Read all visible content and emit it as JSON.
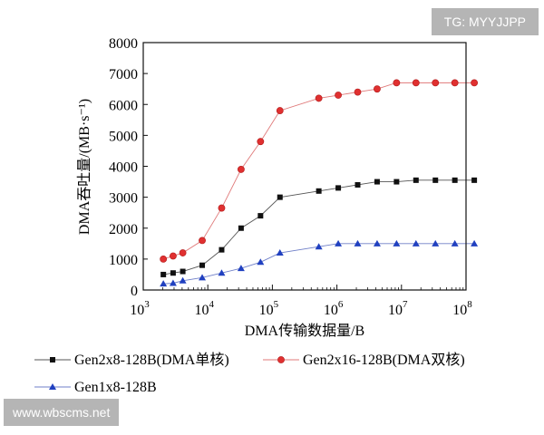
{
  "watermarks": {
    "top_right": "TG: MYYJJPP",
    "bottom_left": "www.wbscms.net"
  },
  "chart_data": {
    "type": "line",
    "xscale": "log",
    "title": "",
    "xlabel": "DMA传输数据量/B",
    "ylabel": "DMA吞吐量/(MB·s⁻¹)",
    "xlim": [
      1000,
      100000000
    ],
    "ylim": [
      0,
      8000
    ],
    "y_ticks": [
      0,
      1000,
      2000,
      3000,
      4000,
      5000,
      6000,
      7000,
      8000
    ],
    "x_ticks": [
      {
        "base": "10",
        "exp": "3"
      },
      {
        "base": "10",
        "exp": "4"
      },
      {
        "base": "10",
        "exp": "5"
      },
      {
        "base": "10",
        "exp": "6"
      },
      {
        "base": "10",
        "exp": "7"
      },
      {
        "base": "10",
        "exp": "8"
      }
    ],
    "x": [
      2048,
      2900,
      4096,
      8192,
      16384,
      32768,
      65536,
      131072,
      524288,
      1048576,
      2097152,
      4194304,
      8388608,
      16777216,
      33554432,
      67108864,
      134217728
    ],
    "series": [
      {
        "name": "Gen2x8-128B(DMA单核)",
        "marker": "square",
        "color": "#111111",
        "values": [
          500,
          550,
          600,
          800,
          1300,
          2000,
          2400,
          3000,
          3200,
          3300,
          3400,
          3500,
          3500,
          3550,
          3550,
          3550,
          3550
        ]
      },
      {
        "name": "Gen2x16-128B(DMA双核)",
        "marker": "circle",
        "color": "#e03030",
        "values": [
          1000,
          1100,
          1200,
          1600,
          2650,
          3900,
          4800,
          5800,
          6200,
          6300,
          6400,
          6500,
          6700,
          6700,
          6700,
          6700,
          6700
        ]
      },
      {
        "name": "Gen1x8-128B",
        "marker": "triangle",
        "color": "#2040c0",
        "values": [
          200,
          220,
          300,
          400,
          550,
          700,
          900,
          1200,
          1400,
          1500,
          1500,
          1500,
          1500,
          1500,
          1500,
          1500,
          1500
        ]
      }
    ]
  }
}
